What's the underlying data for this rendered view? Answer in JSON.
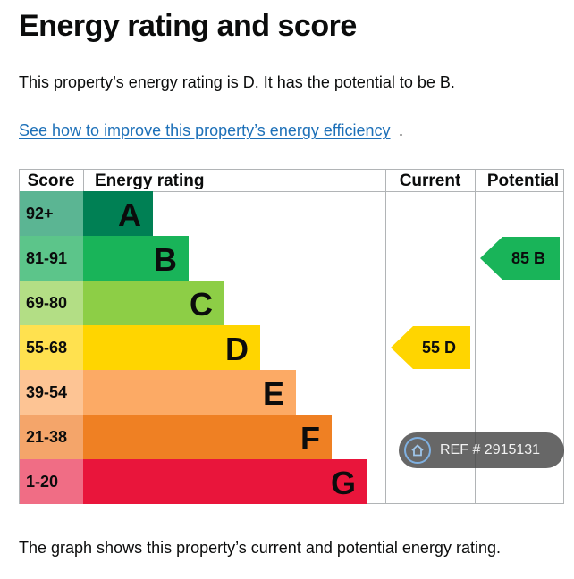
{
  "page": {
    "title": "Energy rating and score",
    "summary": "This property’s energy rating is D. It has the potential to be B.",
    "link_text": "See how to improve this property’s energy efficiency",
    "link_suffix": ".",
    "footer": "The graph shows this property’s current and potential energy rating."
  },
  "chart_data": {
    "type": "table",
    "headers": {
      "score": "Score",
      "rating": "Energy rating",
      "current": "Current",
      "potential": "Potential"
    },
    "bands": [
      {
        "range": "92+",
        "letter": "A",
        "color": "#008054",
        "score_bg": "#5bb593"
      },
      {
        "range": "81-91",
        "letter": "B",
        "color": "#19b459",
        "score_bg": "#5cc58a"
      },
      {
        "range": "69-80",
        "letter": "C",
        "color": "#8dce46",
        "score_bg": "#b3de85"
      },
      {
        "range": "55-68",
        "letter": "D",
        "color": "#ffd500",
        "score_bg": "#ffe14f"
      },
      {
        "range": "39-54",
        "letter": "E",
        "color": "#fcaa65",
        "score_bg": "#fdc494"
      },
      {
        "range": "21-38",
        "letter": "F",
        "color": "#ef8023",
        "score_bg": "#f4a56a"
      },
      {
        "range": "1-20",
        "letter": "G",
        "color": "#e9153b",
        "score_bg": "#f06d85"
      }
    ],
    "current": {
      "score": 55,
      "letter": "D",
      "label": "55  D",
      "color": "#ffd500"
    },
    "potential": {
      "score": 85,
      "letter": "B",
      "label": "85  B",
      "color": "#19b459"
    }
  },
  "watermark": {
    "text": "REF # 2915131",
    "icon": "home-icon"
  }
}
